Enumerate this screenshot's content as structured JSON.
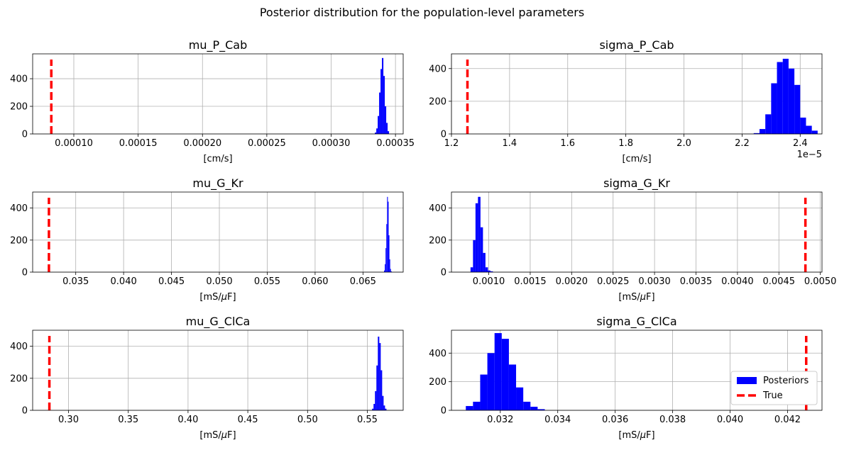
{
  "figure": {
    "suptitle": "Posterior distribution for the population-level parameters",
    "colors": {
      "hist": "#0000ff",
      "true_line": "#ff0000",
      "grid": "#b0b0b0"
    },
    "legend": {
      "entries": [
        "Posteriors",
        "True"
      ],
      "placement": "lower-right of last panel"
    }
  },
  "chart_data": [
    {
      "type": "histogram",
      "title": "mu_P_Cab",
      "xlabel": "[cm/s]",
      "xlim": [
        6.8e-05,
        0.000356
      ],
      "ylim": [
        0,
        580
      ],
      "xticks": [
        0.0001,
        0.00015,
        0.0002,
        0.00025,
        0.0003,
        0.00035
      ],
      "xtick_labels": [
        "0.00010",
        "0.00015",
        "0.00020",
        "0.00025",
        "0.00030",
        "0.00035"
      ],
      "yticks": [
        0,
        200,
        400
      ],
      "offset_text": "",
      "true_value": 8.25e-05,
      "bins": {
        "edges": [
          0.000334,
          0.0003351,
          0.0003362,
          0.0003373,
          0.0003384,
          0.0003395,
          0.0003406,
          0.0003417,
          0.0003428,
          0.0003439,
          0.000345
        ],
        "counts": [
          10,
          40,
          130,
          300,
          470,
          550,
          420,
          200,
          80,
          20
        ]
      },
      "grid": true
    },
    {
      "type": "histogram",
      "title": "sigma_P_Cab",
      "xlabel": "[cm/s]",
      "xlim": [
        1.2e-05,
        2.475e-05
      ],
      "ylim": [
        0,
        490
      ],
      "xticks": [
        1.2e-05,
        1.4e-05,
        1.6e-05,
        1.8e-05,
        2e-05,
        2.2e-05,
        2.4e-05
      ],
      "xtick_labels": [
        "1.2",
        "1.4",
        "1.6",
        "1.8",
        "2.0",
        "2.2",
        "2.4"
      ],
      "yticks": [
        0,
        200,
        400
      ],
      "offset_text": "1e−5",
      "true_value": 1.255e-05,
      "bins": {
        "edges": [
          2.24e-05,
          2.26e-05,
          2.28e-05,
          2.3e-05,
          2.32e-05,
          2.34e-05,
          2.36e-05,
          2.38e-05,
          2.4e-05,
          2.42e-05,
          2.44e-05,
          2.46e-05
        ],
        "counts": [
          5,
          30,
          120,
          310,
          440,
          460,
          400,
          300,
          100,
          50,
          20
        ]
      },
      "grid": true
    },
    {
      "type": "histogram",
      "title": "mu_G_Kr",
      "xlabel": "[mS/$\\mu$F]",
      "xlim": [
        0.0305,
        0.0692
      ],
      "ylim": [
        0,
        500
      ],
      "xticks": [
        0.035,
        0.04,
        0.045,
        0.05,
        0.055,
        0.06,
        0.065
      ],
      "xtick_labels": [
        "0.035",
        "0.040",
        "0.045",
        "0.050",
        "0.055",
        "0.060",
        "0.065"
      ],
      "yticks": [
        0,
        200,
        400
      ],
      "offset_text": "",
      "true_value": 0.0322,
      "bins": {
        "edges": [
          0.0672,
          0.06728,
          0.06736,
          0.06744,
          0.06752,
          0.0676,
          0.06768,
          0.06776,
          0.06784,
          0.06792,
          0.068
        ],
        "counts": [
          10,
          50,
          150,
          300,
          470,
          440,
          230,
          80,
          20,
          5
        ]
      },
      "grid": true
    },
    {
      "type": "histogram",
      "title": "sigma_G_Kr",
      "xlabel": "[mS/$\\mu$F]",
      "xlim": [
        0.00055,
        0.00502
      ],
      "ylim": [
        0,
        500
      ],
      "xticks": [
        0.001,
        0.0015,
        0.002,
        0.0025,
        0.003,
        0.0035,
        0.004,
        0.0045,
        0.005
      ],
      "xtick_labels": [
        "0.0010",
        "0.0015",
        "0.0020",
        "0.0025",
        "0.0030",
        "0.0035",
        "0.0040",
        "0.0045",
        "0.0050"
      ],
      "yticks": [
        0,
        200,
        400
      ],
      "offset_text": "",
      "true_value": 0.00482,
      "bins": {
        "edges": [
          0.00078,
          0.00081,
          0.00084,
          0.00087,
          0.0009,
          0.00093,
          0.00096,
          0.00099,
          0.00102,
          0.00105
        ],
        "counts": [
          30,
          200,
          430,
          470,
          280,
          120,
          30,
          10,
          5
        ]
      },
      "grid": true
    },
    {
      "type": "histogram",
      "title": "mu_G_ClCa",
      "xlabel": "[mS/$\\mu$F]",
      "xlim": [
        0.27,
        0.58
      ],
      "ylim": [
        0,
        500
      ],
      "xticks": [
        0.3,
        0.35,
        0.4,
        0.45,
        0.5,
        0.55
      ],
      "xtick_labels": [
        "0.30",
        "0.35",
        "0.40",
        "0.45",
        "0.50",
        "0.55"
      ],
      "yticks": [
        0,
        200,
        400
      ],
      "offset_text": "",
      "true_value": 0.284,
      "bins": {
        "edges": [
          0.554,
          0.5552,
          0.5564,
          0.5576,
          0.5588,
          0.56,
          0.5612,
          0.5624,
          0.5636,
          0.5648,
          0.566
        ],
        "counts": [
          10,
          40,
          120,
          280,
          460,
          420,
          250,
          90,
          30,
          10
        ]
      },
      "grid": true
    },
    {
      "type": "histogram",
      "title": "sigma_G_ClCa",
      "xlabel": "[mS/$\\mu$F]",
      "xlim": [
        0.0303,
        0.0432
      ],
      "ylim": [
        0,
        560
      ],
      "xticks": [
        0.032,
        0.034,
        0.036,
        0.038,
        0.04,
        0.042
      ],
      "xtick_labels": [
        "0.032",
        "0.034",
        "0.036",
        "0.038",
        "0.040",
        "0.042"
      ],
      "yticks": [
        0,
        200,
        400
      ],
      "offset_text": "",
      "true_value": 0.04265,
      "bins": {
        "edges": [
          0.0308,
          0.03105,
          0.0313,
          0.03155,
          0.0318,
          0.03205,
          0.0323,
          0.03255,
          0.0328,
          0.03305,
          0.0333,
          0.03355
        ],
        "counts": [
          30,
          60,
          250,
          400,
          540,
          500,
          320,
          160,
          60,
          25,
          8
        ]
      },
      "grid": true
    }
  ]
}
